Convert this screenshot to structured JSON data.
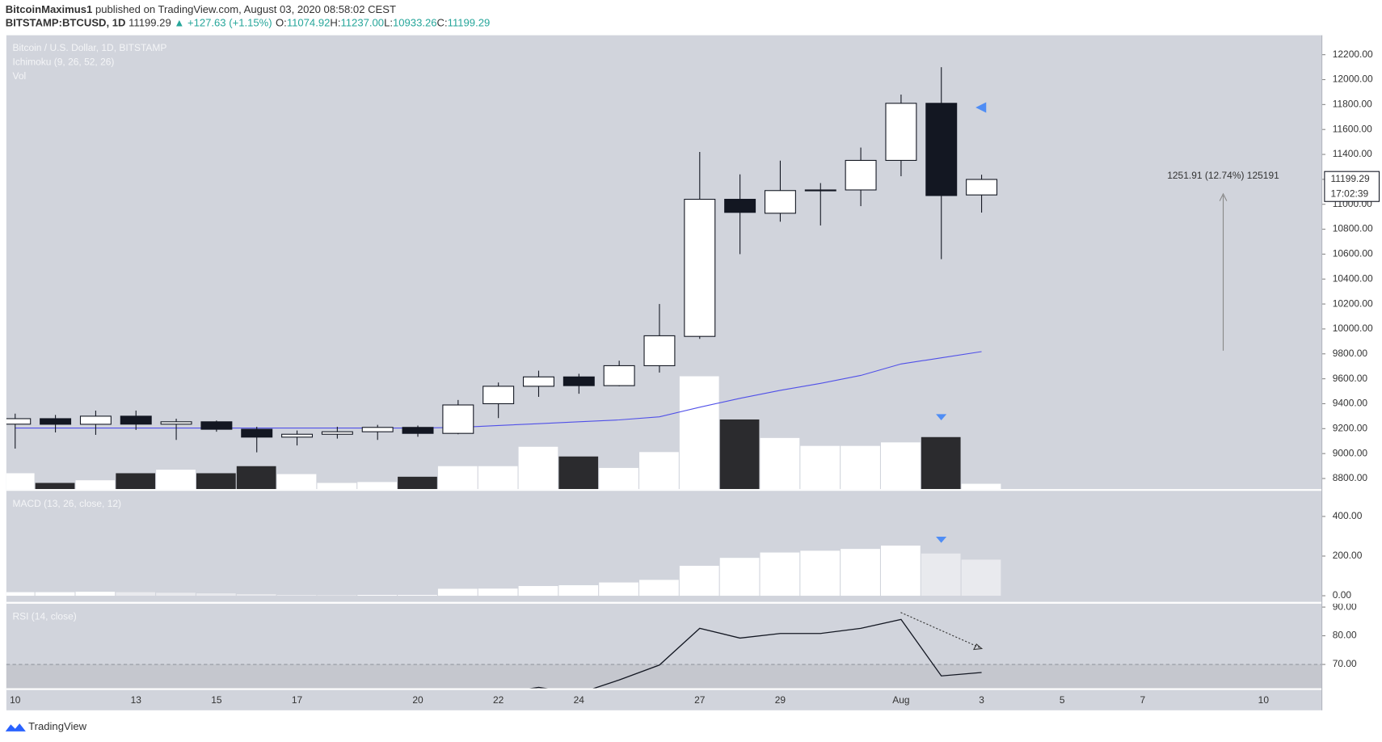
{
  "header": {
    "author": "BitcoinMaximus1",
    "published": "published on TradingView.com, August 03, 2020 08:58:02 CEST",
    "symbol": "BITSTAMP:BTCUSD, 1D",
    "last": "11199.29",
    "change": "▲ +127.63 (+1.15%)",
    "ohlc": [
      {
        "key": "O:",
        "value": "11074.92"
      },
      {
        "key": "H:",
        "value": "11237.00"
      },
      {
        "key": "L:",
        "value": "10933.26"
      },
      {
        "key": "C:",
        "value": "11199.29"
      }
    ]
  },
  "footer": {
    "brand": "TradingView"
  },
  "chart_data": [
    {
      "type": "candlestick",
      "title": "Bitcoin / U.S. Dollar, 1D, BITSTAMP",
      "categories": [
        "10",
        null,
        null,
        "13",
        null,
        "15",
        null,
        "17",
        null,
        null,
        "20",
        null,
        "22",
        null,
        "24",
        null,
        null,
        "27",
        null,
        "29",
        null,
        null,
        "Aug",
        null,
        "3",
        null,
        "5",
        null,
        "7",
        null,
        null,
        "10"
      ],
      "open": [
        9236,
        9280,
        9235,
        9300,
        9236,
        9255,
        9195,
        9132,
        9155,
        9175,
        9210,
        9162,
        9400,
        9540,
        9615,
        9545,
        9705,
        9940,
        11040,
        10928,
        11110,
        11115,
        11352,
        11810,
        11074.92,
        null,
        null,
        null,
        null,
        null,
        null,
        null
      ],
      "high": [
        9320,
        9310,
        9345,
        9345,
        9280,
        9265,
        9215,
        9185,
        9215,
        9230,
        9225,
        9430,
        9570,
        9665,
        9640,
        9745,
        10200,
        11420,
        11240,
        11350,
        11170,
        11455,
        11880,
        12100,
        11237,
        null,
        null,
        null,
        null,
        null,
        null,
        null
      ],
      "low": [
        9040,
        9170,
        9150,
        9190,
        9110,
        9175,
        9010,
        9065,
        9120,
        9110,
        9135,
        9155,
        9285,
        9455,
        9480,
        9540,
        9650,
        9920,
        10600,
        10860,
        10830,
        10985,
        11225,
        10560,
        10933.26,
        null,
        null,
        null,
        null,
        null,
        null,
        null
      ],
      "close": [
        9280,
        9235,
        9300,
        9236,
        9255,
        9195,
        9132,
        9155,
        9175,
        9210,
        9162,
        9390,
        9540,
        9615,
        9545,
        9705,
        9945,
        11040,
        10935,
        11110,
        11115,
        11352,
        11810,
        11070,
        11199.29,
        null,
        null,
        null,
        null,
        null,
        null,
        null
      ],
      "up_color": "#ffffff",
      "down_color": "#131722",
      "overlay": {
        "name": "Ichimoku (9, 26, 52, 26)",
        "color": "#5050e8",
        "values": [
          9205,
          9205,
          9205,
          9205,
          9205,
          9205,
          9205,
          9205,
          9205,
          9205,
          9205,
          9210,
          9225,
          9240,
          9255,
          9270,
          9295,
          9372,
          9443,
          9507,
          9563,
          9627,
          9719,
          9768,
          9818,
          null,
          null,
          null,
          null,
          null,
          null,
          null
        ]
      },
      "ylim": [
        8708,
        12356
      ],
      "yticks": [
        {
          "value": 8800,
          "label": "8800.00"
        },
        {
          "value": 9000,
          "label": "9000.00"
        },
        {
          "value": 9200,
          "label": "9200.00"
        },
        {
          "value": 9400,
          "label": "9400.00"
        },
        {
          "value": 9600,
          "label": "9600.00"
        },
        {
          "value": 9800,
          "label": "9800.00"
        },
        {
          "value": 10000,
          "label": "10000.00"
        },
        {
          "value": 10200,
          "label": "10200.00"
        },
        {
          "value": 10400,
          "label": "10400.00"
        },
        {
          "value": 10600,
          "label": "10600.00"
        },
        {
          "value": 10800,
          "label": "10800.00"
        },
        {
          "value": 11000,
          "label": "11000.00"
        },
        {
          "value": 11200,
          "label": "11200.00"
        },
        {
          "value": 11400,
          "label": "11400.00"
        },
        {
          "value": 11600,
          "label": "11600.00"
        },
        {
          "value": 11800,
          "label": "11800.00"
        },
        {
          "value": 12000,
          "label": "12000.00"
        },
        {
          "value": 12200,
          "label": "12200.00"
        }
      ],
      "last_price": 11199.29,
      "countdown": "17:02:39",
      "measure": "1251.91 (12.74%) 125191"
    },
    {
      "type": "bar",
      "title": "Vol",
      "values": [
        18,
        7,
        10,
        18,
        22,
        18,
        26,
        17,
        7,
        8,
        14,
        26,
        26,
        48,
        37,
        24,
        42,
        128,
        79,
        58,
        49,
        49,
        53,
        59,
        6,
        null,
        null,
        null,
        null,
        null,
        null,
        null
      ],
      "up_color": "#ffffff",
      "down_color": "#2b2b2e",
      "ylim": [
        0,
        515
      ]
    },
    {
      "type": "bar",
      "title": "MACD (13, 26, close, 12)",
      "values": [
        18,
        18,
        20,
        18,
        15,
        12,
        8,
        4,
        3,
        4,
        4,
        35,
        36,
        49,
        53,
        67,
        80,
        151,
        191,
        218,
        227,
        236,
        253,
        213,
        182,
        null,
        null,
        null,
        null,
        null,
        null,
        null
      ],
      "up_color": "#ffffff",
      "down_color": "#e9eaee",
      "ylim": [
        -31,
        529
      ],
      "yticks": [
        {
          "value": 0,
          "label": "0.00"
        },
        {
          "value": 200,
          "label": "200.00"
        },
        {
          "value": 400,
          "label": "400.00"
        }
      ]
    },
    {
      "type": "line",
      "title": "RSI (14, close)",
      "values": [
        null,
        null,
        null,
        null,
        null,
        null,
        null,
        null,
        null,
        null,
        null,
        null,
        59.9,
        62.0,
        59.9,
        64.6,
        69.8,
        82.6,
        79.2,
        80.8,
        80.8,
        82.6,
        85.7,
        66.0,
        67.2,
        null,
        null,
        null,
        null,
        null,
        null,
        null
      ],
      "color": "#131722",
      "threshold": 70,
      "ylim": [
        61.7,
        91.2
      ],
      "yticks": [
        {
          "value": 70,
          "label": "70.00"
        },
        {
          "value": 80,
          "label": "80.00"
        },
        {
          "value": 90,
          "label": "90.00"
        }
      ]
    }
  ]
}
